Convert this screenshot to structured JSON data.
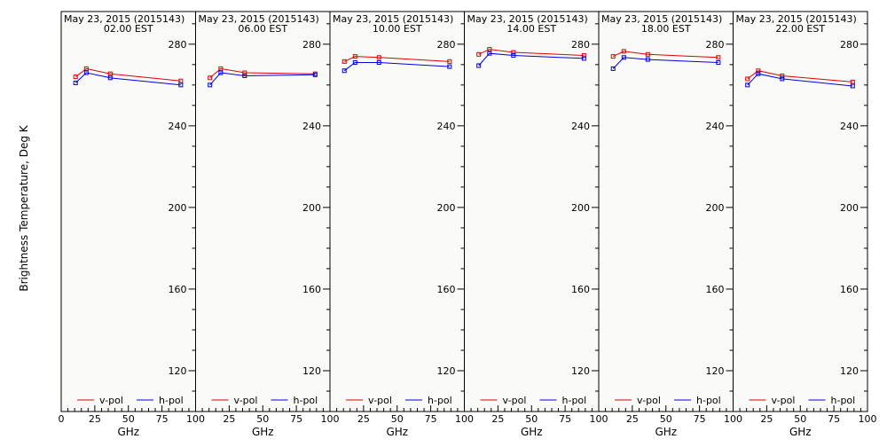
{
  "figure": {
    "ylabel": "Brightness Temperature, Deg K",
    "xlabel": "GHz"
  },
  "colors": {
    "background": "#fafaf8",
    "axis": "#000000",
    "v_pol": "#e00000",
    "h_pol": "#0000e0"
  },
  "legend": {
    "v_label": "v-pol",
    "h_label": "h-pol"
  },
  "chart_data": [
    {
      "type": "line",
      "title": "May 23, 2015 (2015143)",
      "subtitle": "02.00 EST",
      "xlabel": "GHz",
      "ylabel": "Brightness Temperature, Deg K",
      "xlim": [
        0,
        100
      ],
      "ylim": [
        100,
        296
      ],
      "x_ticks": [
        0,
        25,
        50,
        75,
        100
      ],
      "y_ticks": [
        120,
        160,
        200,
        240,
        280
      ],
      "legend": "bottom",
      "grid": false,
      "series": [
        {
          "name": "v-pol",
          "color": "#e00000",
          "x": [
            10.7,
            18.7,
            36.5,
            89.0
          ],
          "y": [
            264.0,
            268.0,
            265.5,
            262.0
          ]
        },
        {
          "name": "h-pol",
          "color": "#0000e0",
          "x": [
            10.7,
            18.7,
            36.5,
            89.0
          ],
          "y": [
            261.0,
            266.0,
            263.5,
            260.0
          ]
        }
      ]
    },
    {
      "type": "line",
      "title": "May 23, 2015 (2015143)",
      "subtitle": "06.00 EST",
      "xlabel": "GHz",
      "xlim": [
        0,
        100
      ],
      "ylim": [
        100,
        296
      ],
      "x_ticks": [
        0,
        25,
        50,
        75,
        100
      ],
      "y_ticks": [
        120,
        160,
        200,
        240,
        280
      ],
      "legend": "bottom",
      "grid": false,
      "series": [
        {
          "name": "v-pol",
          "color": "#e00000",
          "x": [
            10.7,
            18.7,
            36.5,
            89.0
          ],
          "y": [
            263.5,
            268.0,
            266.0,
            265.5
          ]
        },
        {
          "name": "h-pol",
          "color": "#0000e0",
          "x": [
            10.7,
            18.7,
            36.5,
            89.0
          ],
          "y": [
            260.0,
            266.0,
            264.5,
            265.0
          ]
        }
      ]
    },
    {
      "type": "line",
      "title": "May 23, 2015 (2015143)",
      "subtitle": "10.00 EST",
      "xlabel": "GHz",
      "xlim": [
        0,
        100
      ],
      "ylim": [
        100,
        296
      ],
      "x_ticks": [
        0,
        25,
        50,
        75,
        100
      ],
      "y_ticks": [
        120,
        160,
        200,
        240,
        280
      ],
      "legend": "bottom",
      "grid": false,
      "series": [
        {
          "name": "v-pol",
          "color": "#e00000",
          "x": [
            10.7,
            18.7,
            36.5,
            89.0
          ],
          "y": [
            271.5,
            274.0,
            273.5,
            271.5
          ]
        },
        {
          "name": "h-pol",
          "color": "#0000e0",
          "x": [
            10.7,
            18.7,
            36.5,
            89.0
          ],
          "y": [
            267.0,
            271.0,
            271.0,
            269.0
          ]
        }
      ]
    },
    {
      "type": "line",
      "title": "May 23, 2015 (2015143)",
      "subtitle": "14.00 EST",
      "xlabel": "GHz",
      "xlim": [
        0,
        100
      ],
      "ylim": [
        100,
        296
      ],
      "x_ticks": [
        0,
        25,
        50,
        75,
        100
      ],
      "y_ticks": [
        120,
        160,
        200,
        240,
        280
      ],
      "legend": "bottom",
      "grid": false,
      "series": [
        {
          "name": "v-pol",
          "color": "#e00000",
          "x": [
            10.7,
            18.7,
            36.5,
            89.0
          ],
          "y": [
            275.0,
            277.5,
            276.0,
            274.5
          ]
        },
        {
          "name": "h-pol",
          "color": "#0000e0",
          "x": [
            10.7,
            18.7,
            36.5,
            89.0
          ],
          "y": [
            269.5,
            275.5,
            274.5,
            273.0
          ]
        }
      ]
    },
    {
      "type": "line",
      "title": "May 23, 2015 (2015143)",
      "subtitle": "18.00 EST",
      "xlabel": "GHz",
      "xlim": [
        0,
        100
      ],
      "ylim": [
        100,
        296
      ],
      "x_ticks": [
        0,
        25,
        50,
        75,
        100
      ],
      "y_ticks": [
        120,
        160,
        200,
        240,
        280
      ],
      "legend": "bottom",
      "grid": false,
      "series": [
        {
          "name": "v-pol",
          "color": "#e00000",
          "x": [
            10.7,
            18.7,
            36.5,
            89.0
          ],
          "y": [
            274.0,
            276.5,
            275.0,
            273.5
          ]
        },
        {
          "name": "h-pol",
          "color": "#0000e0",
          "x": [
            10.7,
            18.7,
            36.5,
            89.0
          ],
          "y": [
            268.0,
            273.5,
            272.5,
            271.0
          ]
        }
      ]
    },
    {
      "type": "line",
      "title": "May 23, 2015 (2015143)",
      "subtitle": "22.00 EST",
      "xlabel": "GHz",
      "xlim": [
        0,
        100
      ],
      "ylim": [
        100,
        296
      ],
      "x_ticks": [
        0,
        25,
        50,
        75,
        100
      ],
      "y_ticks": [
        120,
        160,
        200,
        240,
        280
      ],
      "legend": "bottom",
      "grid": false,
      "series": [
        {
          "name": "v-pol",
          "color": "#e00000",
          "x": [
            10.7,
            18.7,
            36.5,
            89.0
          ],
          "y": [
            263.0,
            267.0,
            264.5,
            261.5
          ]
        },
        {
          "name": "h-pol",
          "color": "#0000e0",
          "x": [
            10.7,
            18.7,
            36.5,
            89.0
          ],
          "y": [
            260.0,
            265.5,
            263.0,
            259.5
          ]
        }
      ]
    }
  ]
}
